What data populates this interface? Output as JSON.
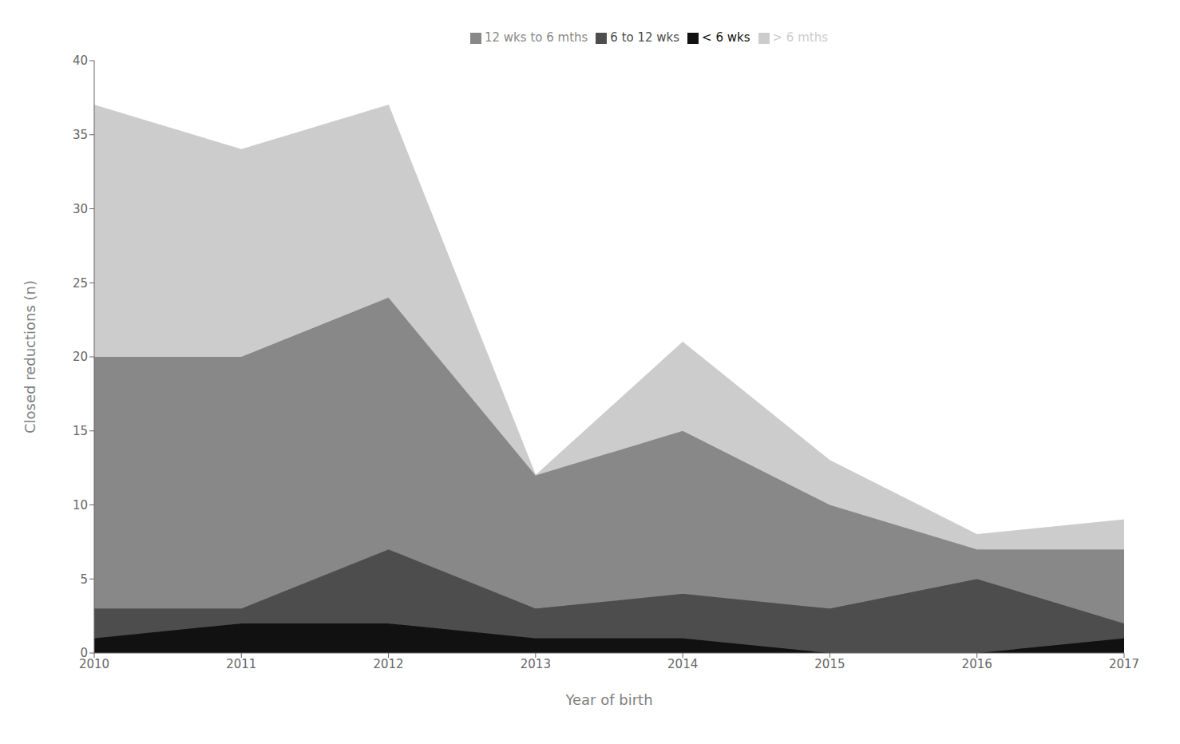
{
  "chart_data": {
    "type": "area",
    "stacked": true,
    "x": [
      2010,
      2011,
      2012,
      2013,
      2014,
      2015,
      2016,
      2017
    ],
    "xlabel": "Year of birth",
    "ylabel": "Closed reductions (n)",
    "xlim": [
      2010,
      2017
    ],
    "xticks": [
      2010,
      2011,
      2012,
      2013,
      2014,
      2015,
      2016,
      2017
    ],
    "ylim": [
      0,
      40
    ],
    "yticks": [
      0,
      5,
      10,
      15,
      20,
      25,
      30,
      35,
      40
    ],
    "grid": false,
    "legend": "top",
    "series": [
      {
        "name": "< 6 wks",
        "color": "#111111",
        "values": [
          1,
          2,
          2,
          1,
          1,
          0,
          0,
          1
        ]
      },
      {
        "name": "6 to 12 wks",
        "color": "#4d4d4d",
        "values": [
          2,
          1,
          5,
          2,
          3,
          3,
          5,
          1
        ]
      },
      {
        "name": "12 wks to 6 mths",
        "color": "#888888",
        "values": [
          17,
          17,
          17,
          9,
          11,
          7,
          2,
          5
        ]
      },
      {
        "name": "> 6 mths",
        "color": "#cccccc",
        "values": [
          17,
          14,
          13,
          0,
          6,
          3,
          1,
          2
        ]
      }
    ]
  }
}
